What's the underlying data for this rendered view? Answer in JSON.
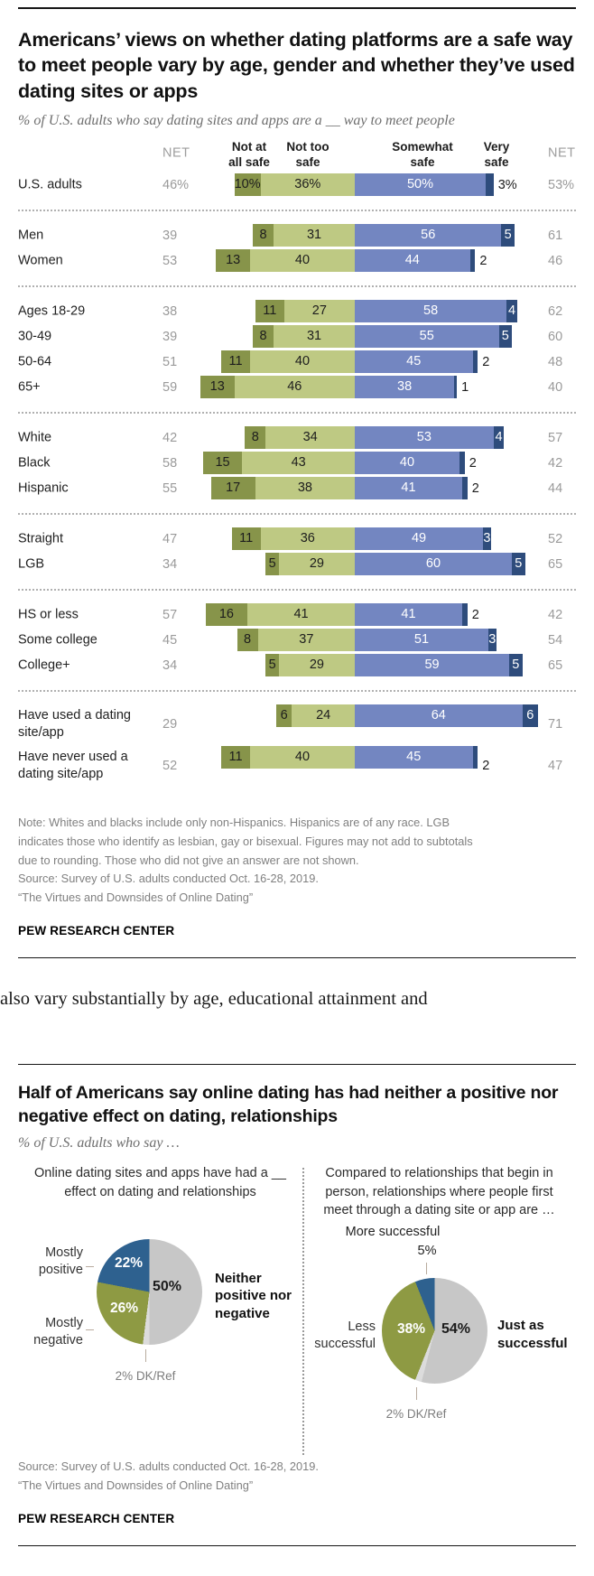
{
  "colors": {
    "bar_dark_olive": "#87944A",
    "bar_olive": "#BEC983",
    "bar_blue": "#7386C1",
    "bar_navy": "#2E4C7C",
    "pie_gray": "#C7C7C7",
    "pie_dk": "#DCDCDC",
    "pie_olive": "#8E9A43",
    "pie_blue": "#2E618F",
    "label_on_olive": "#1d1d1d",
    "label_on_blue": "#ffffff"
  },
  "safety": {
    "title": "Americans’ views on whether dating platforms are a safe way to meet people vary by age, gender and whether they’ve used dating sites or apps",
    "subtitle": "% of U.S. adults who say dating sites and apps are a __ way to meet people",
    "headers": {
      "net_left": "NET",
      "col1": "Not at\nall safe",
      "col2": "Not too\nsafe",
      "col3": "Somewhat\nsafe",
      "col4": "Very\nsafe",
      "net_right": "NET"
    },
    "note": "Note: Whites and blacks include only non-Hispanics. Hispanics are of any race. LGB indicates those who identify as lesbian, gay or bisexual. Figures may not add to subtotals due to rounding. Those who did not give an answer are not shown.",
    "source": "Source: Survey of U.S. adults conducted Oct. 16-28, 2019.",
    "quote": "“The Virtues and Downsides of Online Dating”",
    "brand": "PEW RESEARCH CENTER"
  },
  "article_fragment": "also vary substantially by age, educational attainment and",
  "effects": {
    "title": "Half of Americans say online dating has had neither a positive nor negative effect on dating, relationships",
    "subtitle": "% of U.S. adults who say …",
    "left": {
      "question": "Online dating sites and apps have had a __ effect on dating and relationships",
      "label_positive": "Mostly positive",
      "label_negative": "Mostly negative",
      "label_neither": "Neither positive nor negative",
      "pct_positive": "22%",
      "pct_negative": "26%",
      "pct_neither": "50%",
      "dk": "2% DK/Ref"
    },
    "right": {
      "question": "Compared to relationships that begin in person, relationships where people first meet through a dating site or app are …",
      "label_more": "More successful",
      "pct_more": "5%",
      "label_less": "Less successful",
      "pct_less": "38%",
      "label_just": "Just as successful",
      "pct_just": "54%",
      "dk": "2% DK/Ref"
    },
    "source": "Source: Survey of U.S. adults conducted Oct. 16-28, 2019.",
    "quote": "“The Virtues and Downsides of Online Dating”",
    "brand": "PEW RESEARCH CENTER"
  },
  "chart_data": [
    {
      "type": "bar",
      "variant": "diverging-stacked-horizontal",
      "title": "Americans’ views on whether dating platforms are a safe way to meet people vary by age, gender and whether they’ve used dating sites or apps",
      "subtitle": "% of U.S. adults who say dating sites and apps are a __ way to meet people",
      "series": [
        "Not at all safe",
        "Not too safe",
        "Somewhat safe",
        "Very safe"
      ],
      "unit": "%",
      "groups": [
        {
          "rows": [
            {
              "label": "U.S. adults",
              "net_left": "46%",
              "values": [
                10,
                36,
                50,
                3
              ],
              "labels": [
                "10%",
                "36%",
                "50%",
                "3%"
              ],
              "net_right": "53%",
              "very_inside": false,
              "tall": false
            }
          ]
        },
        {
          "rows": [
            {
              "label": "Men",
              "net_left": "39",
              "values": [
                8,
                31,
                56,
                5
              ],
              "labels": [
                "8",
                "31",
                "56",
                "5"
              ],
              "net_right": "61",
              "very_inside": true,
              "tall": false
            },
            {
              "label": "Women",
              "net_left": "53",
              "values": [
                13,
                40,
                44,
                2
              ],
              "labels": [
                "13",
                "40",
                "44",
                "2"
              ],
              "net_right": "46",
              "very_inside": false,
              "tall": false
            }
          ]
        },
        {
          "rows": [
            {
              "label": "Ages 18-29",
              "net_left": "38",
              "values": [
                11,
                27,
                58,
                4
              ],
              "labels": [
                "11",
                "27",
                "58",
                "4"
              ],
              "net_right": "62",
              "very_inside": true,
              "tall": false
            },
            {
              "label": "30-49",
              "net_left": "39",
              "values": [
                8,
                31,
                55,
                5
              ],
              "labels": [
                "8",
                "31",
                "55",
                "5"
              ],
              "net_right": "60",
              "very_inside": true,
              "tall": false
            },
            {
              "label": "50-64",
              "net_left": "51",
              "values": [
                11,
                40,
                45,
                2
              ],
              "labels": [
                "11",
                "40",
                "45",
                "2"
              ],
              "net_right": "48",
              "very_inside": false,
              "tall": false
            },
            {
              "label": "65+",
              "net_left": "59",
              "values": [
                13,
                46,
                38,
                1
              ],
              "labels": [
                "13",
                "46",
                "38",
                "1"
              ],
              "net_right": "40",
              "very_inside": false,
              "tall": false
            }
          ]
        },
        {
          "rows": [
            {
              "label": "White",
              "net_left": "42",
              "values": [
                8,
                34,
                53,
                4
              ],
              "labels": [
                "8",
                "34",
                "53",
                "4"
              ],
              "net_right": "57",
              "very_inside": true,
              "tall": false
            },
            {
              "label": "Black",
              "net_left": "58",
              "values": [
                15,
                43,
                40,
                2
              ],
              "labels": [
                "15",
                "43",
                "40",
                "2"
              ],
              "net_right": "42",
              "very_inside": false,
              "tall": false
            },
            {
              "label": "Hispanic",
              "net_left": "55",
              "values": [
                17,
                38,
                41,
                2
              ],
              "labels": [
                "17",
                "38",
                "41",
                "2"
              ],
              "net_right": "44",
              "very_inside": false,
              "tall": false
            }
          ]
        },
        {
          "rows": [
            {
              "label": "Straight",
              "net_left": "47",
              "values": [
                11,
                36,
                49,
                3
              ],
              "labels": [
                "11",
                "36",
                "49",
                "3"
              ],
              "net_right": "52",
              "very_inside": true,
              "tall": false
            },
            {
              "label": "LGB",
              "net_left": "34",
              "values": [
                5,
                29,
                60,
                5
              ],
              "labels": [
                "5",
                "29",
                "60",
                "5"
              ],
              "net_right": "65",
              "very_inside": true,
              "tall": false
            }
          ]
        },
        {
          "rows": [
            {
              "label": "HS or less",
              "net_left": "57",
              "values": [
                16,
                41,
                41,
                2
              ],
              "labels": [
                "16",
                "41",
                "41",
                "2"
              ],
              "net_right": "42",
              "very_inside": false,
              "tall": false
            },
            {
              "label": "Some college",
              "net_left": "45",
              "values": [
                8,
                37,
                51,
                3
              ],
              "labels": [
                "8",
                "37",
                "51",
                "3"
              ],
              "net_right": "54",
              "very_inside": true,
              "tall": false
            },
            {
              "label": "College+",
              "net_left": "34",
              "values": [
                5,
                29,
                59,
                5
              ],
              "labels": [
                "5",
                "29",
                "59",
                "5"
              ],
              "net_right": "65",
              "very_inside": true,
              "tall": false
            }
          ]
        },
        {
          "rows": [
            {
              "label": "Have used a dating site/app",
              "net_left": "29",
              "values": [
                6,
                24,
                64,
                6
              ],
              "labels": [
                "6",
                "24",
                "64",
                "6"
              ],
              "net_right": "71",
              "very_inside": true,
              "tall": true
            },
            {
              "label": "Have never used a dating site/app",
              "net_left": "52",
              "values": [
                11,
                40,
                45,
                2
              ],
              "labels": [
                "11",
                "40",
                "45",
                "2"
              ],
              "net_right": "47",
              "very_inside": false,
              "tall": true
            }
          ]
        }
      ]
    },
    {
      "type": "pie",
      "question": "Online dating sites and apps have had a __ effect on dating and relationships",
      "start_angle": "12 o'clock, clockwise",
      "slices": [
        {
          "label": "Neither positive nor negative",
          "value": 50,
          "color": "pie_gray"
        },
        {
          "label": "DK/Ref",
          "value": 2,
          "color": "pie_dk"
        },
        {
          "label": "Mostly negative",
          "value": 26,
          "color": "pie_olive"
        },
        {
          "label": "Mostly positive",
          "value": 22,
          "color": "pie_blue"
        }
      ]
    },
    {
      "type": "pie",
      "question": "Compared to relationships that begin in person, relationships where people first meet through a dating site or app are …",
      "start_angle": "12 o'clock, clockwise",
      "slices": [
        {
          "label": "Just as successful",
          "value": 54,
          "color": "pie_gray"
        },
        {
          "label": "DK/Ref",
          "value": 2,
          "color": "pie_dk"
        },
        {
          "label": "Less successful",
          "value": 38,
          "color": "pie_olive"
        },
        {
          "label": "More successful",
          "value": 5,
          "color": "pie_blue"
        }
      ]
    }
  ]
}
